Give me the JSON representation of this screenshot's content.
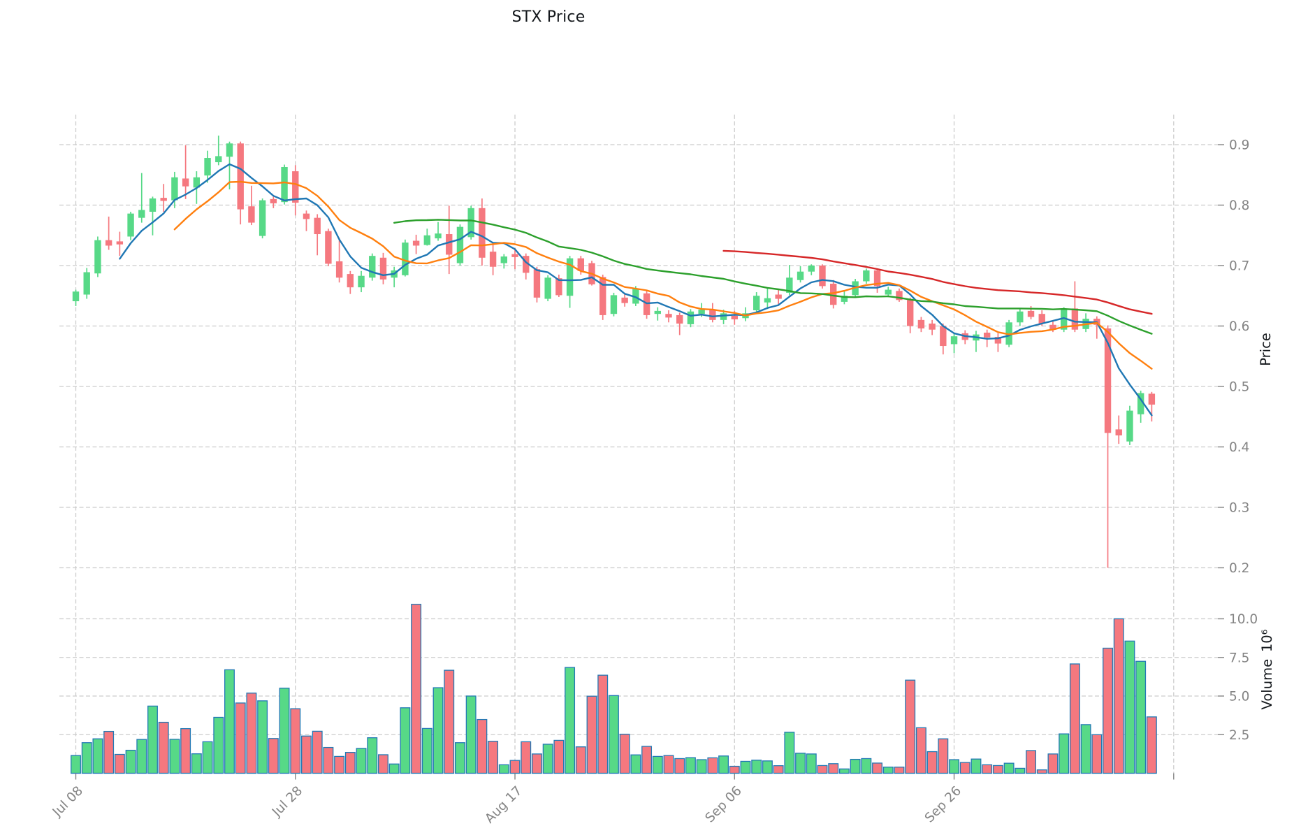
{
  "title": "STX Price",
  "chart_data": {
    "type": "candlestick",
    "title": "STX Price",
    "grid": true,
    "legend_position": "none",
    "price_axis": {
      "label": "Price",
      "ticks": [
        0.9,
        0.8,
        0.7,
        0.6,
        0.5,
        0.4,
        0.3,
        0.2
      ],
      "range": [
        0.164,
        0.948
      ]
    },
    "volume_axis": {
      "label": "Volume",
      "unit": "10⁶",
      "ticks": [
        10.0,
        7.5,
        5.0,
        2.5
      ],
      "range": [
        0,
        12.4
      ],
      "unit_multiplier": 1000000
    },
    "x_axis": {
      "tick_labels": [
        "Jul 08",
        "Jul 28",
        "Aug 17",
        "Sep 06",
        "Sep 26"
      ],
      "tick_indices": [
        0,
        20,
        40,
        60,
        80
      ],
      "gridline_indices": [
        0,
        20,
        40,
        60,
        80,
        100
      ],
      "rotation_degrees": 45
    },
    "moving_averages": [
      {
        "name": "MA5",
        "window": 5,
        "color": "#1f77b4"
      },
      {
        "name": "MA10",
        "window": 10,
        "color": "#ff7f0e"
      },
      {
        "name": "MA30",
        "window": 30,
        "color": "#2ca02c"
      },
      {
        "name": "MA60",
        "window": 60,
        "color": "#d62728"
      }
    ],
    "colors": {
      "up": "#57d987",
      "down": "#f5787f",
      "volume_edge": "#2279b5",
      "grid": "#cccccc",
      "tick_text": "#848484",
      "title_text": "#14181c"
    },
    "candles_ohlcv": [
      [
        0.641,
        0.66,
        0.633,
        0.657,
        1.15
      ],
      [
        0.652,
        0.696,
        0.645,
        0.689,
        1.98
      ],
      [
        0.687,
        0.748,
        0.681,
        0.742,
        2.23
      ],
      [
        0.742,
        0.781,
        0.726,
        0.733,
        2.71
      ],
      [
        0.74,
        0.756,
        0.716,
        0.735,
        1.22
      ],
      [
        0.748,
        0.789,
        0.742,
        0.786,
        1.49
      ],
      [
        0.779,
        0.853,
        0.771,
        0.792,
        2.19
      ],
      [
        0.789,
        0.814,
        0.75,
        0.811,
        4.35
      ],
      [
        0.812,
        0.835,
        0.789,
        0.807,
        3.3
      ],
      [
        0.808,
        0.855,
        0.795,
        0.846,
        2.2
      ],
      [
        0.844,
        0.899,
        0.81,
        0.831,
        2.89
      ],
      [
        0.829,
        0.856,
        0.802,
        0.846,
        1.26
      ],
      [
        0.849,
        0.89,
        0.837,
        0.878,
        2.04
      ],
      [
        0.871,
        0.915,
        0.866,
        0.881,
        3.62
      ],
      [
        0.88,
        0.905,
        0.826,
        0.902,
        6.7
      ],
      [
        0.902,
        0.905,
        0.768,
        0.793,
        4.55
      ],
      [
        0.798,
        0.832,
        0.767,
        0.771,
        5.19
      ],
      [
        0.749,
        0.811,
        0.745,
        0.808,
        4.69
      ],
      [
        0.81,
        0.814,
        0.795,
        0.803,
        2.25
      ],
      [
        0.805,
        0.867,
        0.801,
        0.863,
        5.51
      ],
      [
        0.856,
        0.866,
        0.783,
        0.804,
        4.18
      ],
      [
        0.786,
        0.791,
        0.757,
        0.777,
        2.41
      ],
      [
        0.779,
        0.785,
        0.717,
        0.752,
        2.72
      ],
      [
        0.757,
        0.761,
        0.699,
        0.703,
        1.67
      ],
      [
        0.707,
        0.746,
        0.672,
        0.68,
        1.09
      ],
      [
        0.686,
        0.691,
        0.653,
        0.664,
        1.35
      ],
      [
        0.664,
        0.691,
        0.656,
        0.683,
        1.61
      ],
      [
        0.68,
        0.72,
        0.675,
        0.716,
        2.3
      ],
      [
        0.713,
        0.721,
        0.669,
        0.677,
        1.2
      ],
      [
        0.68,
        0.698,
        0.664,
        0.692,
        0.6
      ],
      [
        0.684,
        0.743,
        0.682,
        0.738,
        4.24
      ],
      [
        0.741,
        0.751,
        0.719,
        0.733,
        10.94
      ],
      [
        0.734,
        0.761,
        0.733,
        0.75,
        2.9
      ],
      [
        0.745,
        0.772,
        0.741,
        0.753,
        5.54
      ],
      [
        0.752,
        0.799,
        0.686,
        0.718,
        6.67
      ],
      [
        0.704,
        0.768,
        0.7,
        0.764,
        1.98
      ],
      [
        0.747,
        0.799,
        0.743,
        0.795,
        5.0
      ],
      [
        0.795,
        0.811,
        0.7,
        0.713,
        3.48
      ],
      [
        0.723,
        0.739,
        0.684,
        0.698,
        2.07
      ],
      [
        0.704,
        0.719,
        0.695,
        0.715,
        0.55
      ],
      [
        0.719,
        0.729,
        0.694,
        0.714,
        0.83
      ],
      [
        0.716,
        0.72,
        0.677,
        0.688,
        2.04
      ],
      [
        0.694,
        0.698,
        0.639,
        0.647,
        1.25
      ],
      [
        0.645,
        0.684,
        0.641,
        0.68,
        1.88
      ],
      [
        0.679,
        0.685,
        0.648,
        0.651,
        2.13
      ],
      [
        0.65,
        0.716,
        0.63,
        0.712,
        6.85
      ],
      [
        0.712,
        0.716,
        0.685,
        0.691,
        1.71
      ],
      [
        0.704,
        0.708,
        0.667,
        0.669,
        4.99
      ],
      [
        0.681,
        0.685,
        0.61,
        0.618,
        6.35
      ],
      [
        0.62,
        0.655,
        0.616,
        0.651,
        5.03
      ],
      [
        0.647,
        0.653,
        0.632,
        0.638,
        2.53
      ],
      [
        0.637,
        0.666,
        0.633,
        0.662,
        1.19
      ],
      [
        0.654,
        0.658,
        0.612,
        0.618,
        1.74
      ],
      [
        0.62,
        0.631,
        0.609,
        0.625,
        1.09
      ],
      [
        0.62,
        0.626,
        0.606,
        0.614,
        1.15
      ],
      [
        0.618,
        0.622,
        0.585,
        0.604,
        0.95
      ],
      [
        0.603,
        0.628,
        0.598,
        0.624,
        1.01
      ],
      [
        0.62,
        0.638,
        0.615,
        0.627,
        0.88
      ],
      [
        0.627,
        0.638,
        0.606,
        0.61,
        1.0
      ],
      [
        0.61,
        0.627,
        0.603,
        0.621,
        1.12
      ],
      [
        0.617,
        0.625,
        0.602,
        0.611,
        0.45
      ],
      [
        0.613,
        0.631,
        0.608,
        0.621,
        0.77
      ],
      [
        0.626,
        0.656,
        0.621,
        0.65,
        0.85
      ],
      [
        0.639,
        0.662,
        0.628,
        0.646,
        0.8
      ],
      [
        0.652,
        0.66,
        0.635,
        0.645,
        0.49
      ],
      [
        0.655,
        0.701,
        0.651,
        0.68,
        2.66
      ],
      [
        0.676,
        0.699,
        0.672,
        0.69,
        1.3
      ],
      [
        0.69,
        0.702,
        0.684,
        0.7,
        1.25
      ],
      [
        0.7,
        0.702,
        0.662,
        0.666,
        0.5
      ],
      [
        0.67,
        0.676,
        0.629,
        0.635,
        0.62
      ],
      [
        0.64,
        0.658,
        0.636,
        0.65,
        0.28
      ],
      [
        0.651,
        0.678,
        0.647,
        0.674,
        0.9
      ],
      [
        0.674,
        0.695,
        0.67,
        0.692,
        0.95
      ],
      [
        0.692,
        0.693,
        0.655,
        0.666,
        0.66
      ],
      [
        0.652,
        0.665,
        0.648,
        0.66,
        0.4
      ],
      [
        0.658,
        0.662,
        0.64,
        0.643,
        0.4
      ],
      [
        0.643,
        0.647,
        0.588,
        0.6,
        6.03
      ],
      [
        0.61,
        0.615,
        0.59,
        0.596,
        2.95
      ],
      [
        0.604,
        0.61,
        0.585,
        0.594,
        1.4
      ],
      [
        0.6,
        0.604,
        0.553,
        0.567,
        2.23
      ],
      [
        0.57,
        0.588,
        0.555,
        0.583,
        0.88
      ],
      [
        0.588,
        0.593,
        0.57,
        0.577,
        0.7
      ],
      [
        0.576,
        0.592,
        0.557,
        0.586,
        0.92
      ],
      [
        0.589,
        0.594,
        0.565,
        0.581,
        0.55
      ],
      [
        0.582,
        0.588,
        0.557,
        0.571,
        0.5
      ],
      [
        0.569,
        0.61,
        0.565,
        0.606,
        0.65
      ],
      [
        0.606,
        0.63,
        0.6,
        0.624,
        0.32
      ],
      [
        0.625,
        0.633,
        0.611,
        0.615,
        1.47
      ],
      [
        0.62,
        0.626,
        0.6,
        0.604,
        0.22
      ],
      [
        0.602,
        0.608,
        0.59,
        0.594,
        1.25
      ],
      [
        0.594,
        0.631,
        0.59,
        0.629,
        2.55
      ],
      [
        0.629,
        0.674,
        0.59,
        0.594,
        7.08
      ],
      [
        0.595,
        0.621,
        0.59,
        0.612,
        3.15
      ],
      [
        0.612,
        0.616,
        0.579,
        0.602,
        2.5
      ],
      [
        0.596,
        0.601,
        0.2,
        0.423,
        8.1
      ],
      [
        0.429,
        0.452,
        0.405,
        0.419,
        10.0
      ],
      [
        0.409,
        0.468,
        0.403,
        0.46,
        8.56
      ],
      [
        0.454,
        0.493,
        0.44,
        0.489,
        7.25
      ],
      [
        0.488,
        0.491,
        0.442,
        0.47,
        3.65
      ]
    ]
  }
}
